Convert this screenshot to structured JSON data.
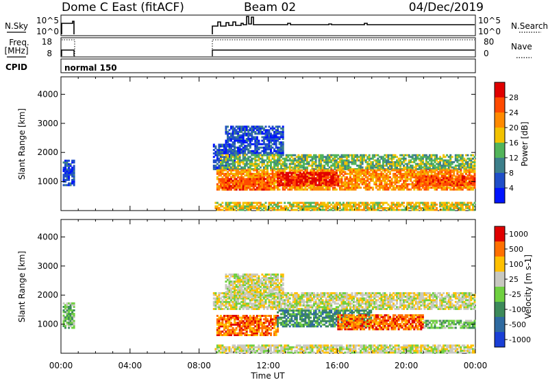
{
  "header": {
    "station": "Dome C East (fitACF)",
    "beam": "Beam 02",
    "date": "04/Dec/2019"
  },
  "strips": {
    "nsky_label": "N.Sky",
    "nsky_ticks": [
      "10^5",
      "10^0"
    ],
    "nsearch_label": "N.Search",
    "nsearch_ticks": [
      "10^5",
      "10^0"
    ],
    "freq_label_1": "Freq.",
    "freq_label_2": "[MHz]",
    "freq_ticks": [
      "18",
      "8"
    ],
    "nave_label": "Nave",
    "nave_ticks": [
      "80",
      "0"
    ],
    "cpid_label": "CPID",
    "cpid_value": "normal 150"
  },
  "chart_data": [
    {
      "type": "heatmap",
      "name": "power",
      "ylabel": "Slant Range [km]",
      "ylim": [
        0,
        4600
      ],
      "yticks": [
        "1000",
        "2000",
        "3000",
        "4000"
      ],
      "xlim": [
        0,
        24
      ],
      "colorbar": {
        "label": "Power [dB]",
        "ticks": [
          "4",
          "8",
          "12",
          "16",
          "20",
          "24",
          "28"
        ],
        "colors": [
          "#0014ff",
          "#1f4ec8",
          "#3c7f8a",
          "#52b45a",
          "#f2c200",
          "#ff8a00",
          "#ff4a00",
          "#e00000"
        ]
      },
      "regions": [
        {
          "t0": 0.1,
          "t1": 0.75,
          "r0": 850,
          "r1": 1700,
          "level": 1
        },
        {
          "t0": 8.8,
          "t1": 10.0,
          "r0": 1400,
          "r1": 2300,
          "level": 1
        },
        {
          "t0": 9.5,
          "t1": 12.8,
          "r0": 1900,
          "r1": 2900,
          "level": 1
        },
        {
          "t0": 9.2,
          "t1": 24.0,
          "r0": 1400,
          "r1": 1900,
          "level": 3
        },
        {
          "t0": 9.0,
          "t1": 24.0,
          "r0": 700,
          "r1": 1400,
          "level": 5
        },
        {
          "t0": 12.5,
          "t1": 16.0,
          "r0": 850,
          "r1": 1300,
          "level": 7
        },
        {
          "t0": 9.2,
          "t1": 12.0,
          "r0": 700,
          "r1": 1100,
          "level": 6
        },
        {
          "t0": 20.5,
          "t1": 24.0,
          "r0": 850,
          "r1": 1200,
          "level": 6
        },
        {
          "t0": 8.9,
          "t1": 24.0,
          "r0": 0,
          "r1": 250,
          "level": 4
        }
      ]
    },
    {
      "type": "heatmap",
      "name": "velocity",
      "ylabel": "Slant Range [km]",
      "ylim": [
        0,
        4600
      ],
      "yticks": [
        "1000",
        "2000",
        "3000",
        "4000"
      ],
      "xlim": [
        0,
        24
      ],
      "xticks": [
        "00:00",
        "04:00",
        "08:00",
        "12:00",
        "16:00",
        "20:00",
        "00:00"
      ],
      "xlabel": "Time UT",
      "colorbar": {
        "label": "Velocity [m s-1]",
        "ticks": [
          "1000",
          "500",
          "100",
          "25",
          "-25",
          "-100",
          "-500",
          "-1000"
        ],
        "colors": [
          "#1a3fd6",
          "#2e6aa0",
          "#3d8a5a",
          "#6fd040",
          "#c8c8c0",
          "#ffc000",
          "#ff7000",
          "#e00000"
        ]
      },
      "regions": [
        {
          "t0": 0.1,
          "t1": 0.75,
          "r0": 850,
          "r1": 1700,
          "level": 3
        },
        {
          "t0": 8.8,
          "t1": 24.0,
          "r0": 1500,
          "r1": 2100,
          "level": 4
        },
        {
          "t0": 9.5,
          "t1": 12.8,
          "r0": 1900,
          "r1": 2700,
          "level": 4
        },
        {
          "t0": 9.0,
          "t1": 12.5,
          "r0": 600,
          "r1": 1300,
          "level": 6
        },
        {
          "t0": 12.5,
          "t1": 18.0,
          "r0": 900,
          "r1": 1500,
          "level": 2
        },
        {
          "t0": 16.0,
          "t1": 21.0,
          "r0": 800,
          "r1": 1300,
          "level": 6
        },
        {
          "t0": 21.0,
          "t1": 24.0,
          "r0": 850,
          "r1": 1150,
          "level": 3
        },
        {
          "t0": 8.9,
          "t1": 24.0,
          "r0": 0,
          "r1": 250,
          "level": 4
        }
      ]
    }
  ]
}
